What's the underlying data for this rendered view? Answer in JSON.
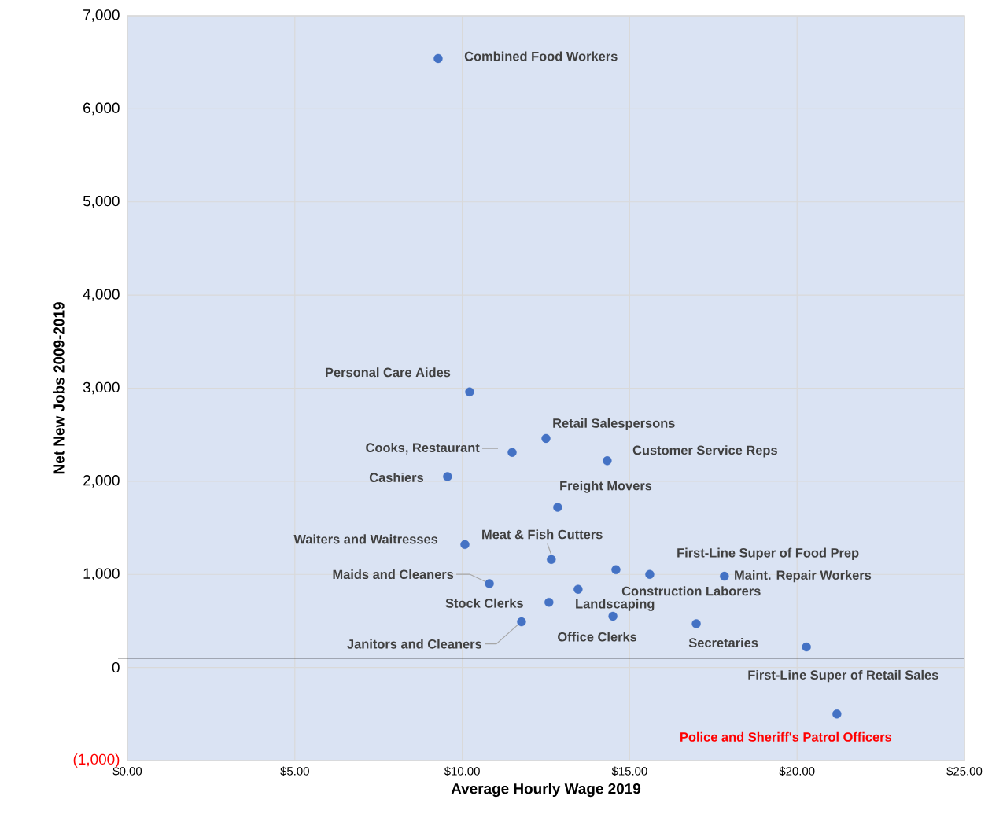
{
  "chart_data": {
    "type": "scatter",
    "xlabel": "Average Hourly Wage 2019",
    "ylabel": "Net New Jobs 2009-2019",
    "x": [
      9.28,
      10.22,
      12.5,
      11.49,
      14.33,
      9.56,
      12.85,
      10.08,
      12.66,
      14.59,
      15.6,
      17.83,
      13.46,
      12.59,
      10.81,
      11.77,
      14.5,
      16.99,
      20.28,
      21.19
    ],
    "series": [
      {
        "color": "#4472c4",
        "values": [
          6540,
          2960,
          2460,
          2310,
          2220,
          2050,
          1720,
          1320,
          1160,
          1050,
          1000,
          980,
          840,
          700,
          900,
          490,
          550,
          470,
          220,
          -500
        ]
      }
    ],
    "annotations": [
      {
        "text": "Combined Food Workers",
        "x": 9.28,
        "y": 6540
      },
      {
        "text": "Personal Care Aides",
        "x": 10.22,
        "y": 2960
      },
      {
        "text": "Retail Salespersons",
        "x": 12.5,
        "y": 2460
      },
      {
        "text": "Cooks, Restaurant",
        "x": 11.49,
        "y": 2310
      },
      {
        "text": "Customer Service Reps",
        "x": 14.33,
        "y": 2220
      },
      {
        "text": "Cashiers",
        "x": 9.56,
        "y": 2050
      },
      {
        "text": "Freight Movers",
        "x": 12.85,
        "y": 1720
      },
      {
        "text": "Waiters and Waitresses",
        "x": 10.08,
        "y": 1320
      },
      {
        "text": "Meat & Fish Cutters",
        "x": 12.66,
        "y": 1160
      },
      {
        "text": "Construction Laborers",
        "x": 14.59,
        "y": 1050
      },
      {
        "text": "First-Line Super of Food Prep",
        "x": 15.6,
        "y": 1000
      },
      {
        "text": "Maint. Repair Workers",
        "x": 17.83,
        "y": 980
      },
      {
        "text": "Landscaping",
        "x": 13.46,
        "y": 840
      },
      {
        "text": "Stock Clerks",
        "x": 12.59,
        "y": 700
      },
      {
        "text": "Maids and Cleaners",
        "x": 10.81,
        "y": 900
      },
      {
        "text": "Janitors and Cleaners",
        "x": 11.77,
        "y": 490
      },
      {
        "text": "Office Clerks",
        "x": 14.5,
        "y": 550
      },
      {
        "text": "Secretaries",
        "x": 16.99,
        "y": 470
      },
      {
        "text": "First-Line Super of Retail Sales",
        "x": 20.28,
        "y": 220
      },
      {
        "text": "Police and Sheriff's Patrol Officers",
        "x": 21.19,
        "y": -500
      }
    ],
    "ref_lines": [
      {
        "axis": "y",
        "value": 100,
        "color": "#000000"
      }
    ],
    "xlim": [
      0,
      25
    ],
    "xticks": [
      {
        "value": 0,
        "label": "$0.00"
      },
      {
        "value": 5,
        "label": "$5.00"
      },
      {
        "value": 10,
        "label": "$10.00"
      },
      {
        "value": 15,
        "label": "$15.00"
      },
      {
        "value": 20,
        "label": "$20.00"
      },
      {
        "value": 25,
        "label": "$25.00"
      }
    ],
    "ylim": [
      -1000,
      7000
    ],
    "yticks": [
      {
        "value": -1000,
        "label": "(1,000)"
      },
      {
        "value": 0,
        "label": "0"
      },
      {
        "value": 1000,
        "label": "1,000"
      },
      {
        "value": 2000,
        "label": "2,000"
      },
      {
        "value": 3000,
        "label": "3,000"
      },
      {
        "value": 4000,
        "label": "4,000"
      },
      {
        "value": 5000,
        "label": "5,000"
      },
      {
        "value": 6000,
        "label": "6,000"
      },
      {
        "value": 7000,
        "label": "7,000"
      }
    ],
    "grid": true,
    "marker": "circle"
  }
}
